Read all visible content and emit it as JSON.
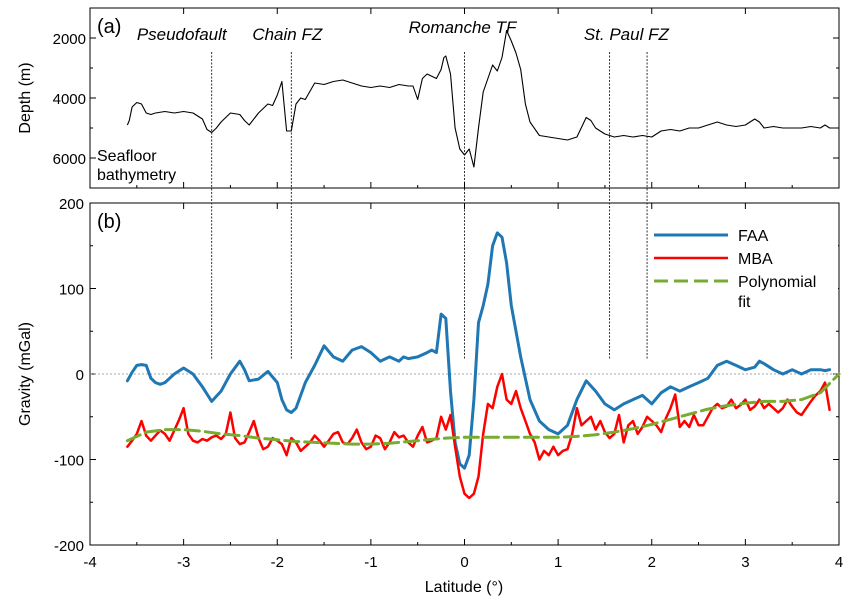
{
  "chart_data": [
    {
      "type": "line",
      "panel_label": "(a)",
      "ylabel": "Depth (m)",
      "y_reversed": true,
      "ylim": [
        7000,
        1000
      ],
      "xlim": [
        -4,
        4
      ],
      "yticks": [
        {
          "value": 2000,
          "label": "2000"
        },
        {
          "value": 4000,
          "label": "4000"
        },
        {
          "value": 6000,
          "label": "6000"
        }
      ],
      "inner_label_lines": [
        "Seafloor",
        "bathymetry"
      ],
      "fracture_zones": [
        {
          "name": "Pseudofault",
          "x": -2.7
        },
        {
          "name": "Chain FZ",
          "x": -1.85
        },
        {
          "name": "Romanche TF",
          "x": 0.0
        },
        {
          "name": "St. Paul FZ",
          "x": 1.95,
          "x2": 1.55
        }
      ],
      "series": [
        {
          "color": "#000000",
          "x": [
            -3.6,
            -3.58,
            -3.55,
            -3.5,
            -3.45,
            -3.4,
            -3.35,
            -3.3,
            -3.2,
            -3.1,
            -3.0,
            -2.9,
            -2.8,
            -2.75,
            -2.7,
            -2.65,
            -2.6,
            -2.5,
            -2.4,
            -2.35,
            -2.3,
            -2.2,
            -2.1,
            -2.05,
            -2.0,
            -1.95,
            -1.9,
            -1.85,
            -1.8,
            -1.75,
            -1.7,
            -1.6,
            -1.5,
            -1.4,
            -1.3,
            -1.2,
            -1.1,
            -1.0,
            -0.9,
            -0.8,
            -0.7,
            -0.6,
            -0.55,
            -0.5,
            -0.45,
            -0.4,
            -0.3,
            -0.25,
            -0.22,
            -0.2,
            -0.15,
            -0.1,
            -0.05,
            0.0,
            0.05,
            0.1,
            0.15,
            0.2,
            0.25,
            0.3,
            0.35,
            0.4,
            0.45,
            0.5,
            0.55,
            0.6,
            0.65,
            0.7,
            0.8,
            0.9,
            1.0,
            1.1,
            1.2,
            1.3,
            1.35,
            1.4,
            1.5,
            1.6,
            1.7,
            1.8,
            1.9,
            2.0,
            2.1,
            2.2,
            2.3,
            2.4,
            2.5,
            2.6,
            2.7,
            2.8,
            2.9,
            3.0,
            3.1,
            3.15,
            3.2,
            3.3,
            3.4,
            3.5,
            3.6,
            3.7,
            3.8,
            3.85,
            3.9,
            4.0
          ],
          "y": [
            4900,
            4750,
            4300,
            4150,
            4200,
            4500,
            4550,
            4500,
            4450,
            4500,
            4450,
            4500,
            4700,
            5050,
            5150,
            5000,
            4800,
            4500,
            4550,
            4750,
            4900,
            4500,
            4200,
            4250,
            3900,
            3450,
            5100,
            5100,
            4200,
            4000,
            4050,
            3500,
            3550,
            3450,
            3400,
            3500,
            3600,
            3650,
            3600,
            3650,
            3550,
            3600,
            3600,
            4050,
            3350,
            3200,
            3350,
            3050,
            2650,
            2600,
            3200,
            5000,
            5700,
            5900,
            5700,
            6300,
            5000,
            3800,
            3350,
            2900,
            3100,
            2650,
            1750,
            2100,
            2500,
            3050,
            4200,
            4800,
            5250,
            5300,
            5350,
            5400,
            5300,
            4650,
            4750,
            5000,
            5200,
            5300,
            5250,
            5300,
            5250,
            5300,
            5100,
            5050,
            5100,
            5000,
            5000,
            4900,
            4800,
            4900,
            4950,
            4900,
            4700,
            4800,
            5000,
            4950,
            5000,
            5000,
            5000,
            4950,
            5000,
            4900,
            5000,
            5000
          ]
        }
      ]
    },
    {
      "type": "line",
      "panel_label": "(b)",
      "xlabel": "Latitude (°)",
      "ylabel": "Gravity (mGal)",
      "xlim": [
        -4,
        4
      ],
      "ylim": [
        -200,
        200
      ],
      "xticks": [
        {
          "value": -4,
          "label": "-4"
        },
        {
          "value": -3,
          "label": "-3"
        },
        {
          "value": -2,
          "label": "-2"
        },
        {
          "value": -1,
          "label": "-1"
        },
        {
          "value": 0,
          "label": "0"
        },
        {
          "value": 1,
          "label": "1"
        },
        {
          "value": 2,
          "label": "2"
        },
        {
          "value": 3,
          "label": "3"
        },
        {
          "value": 4,
          "label": "4"
        }
      ],
      "yticks": [
        {
          "value": -200,
          "label": "-200"
        },
        {
          "value": -100,
          "label": "-100"
        },
        {
          "value": 0,
          "label": "0"
        },
        {
          "value": 100,
          "label": "100"
        },
        {
          "value": 200,
          "label": "200"
        }
      ],
      "zero_line": true,
      "legend_position": "top-right",
      "series": [
        {
          "name": "FAA",
          "color": "#1f77b4",
          "width": 3,
          "dash": "",
          "x": [
            -3.6,
            -3.55,
            -3.5,
            -3.45,
            -3.4,
            -3.35,
            -3.3,
            -3.25,
            -3.2,
            -3.1,
            -3.0,
            -2.9,
            -2.8,
            -2.7,
            -2.6,
            -2.5,
            -2.4,
            -2.35,
            -2.3,
            -2.2,
            -2.1,
            -2.0,
            -1.95,
            -1.9,
            -1.85,
            -1.8,
            -1.7,
            -1.6,
            -1.5,
            -1.4,
            -1.3,
            -1.2,
            -1.1,
            -1.0,
            -0.9,
            -0.8,
            -0.7,
            -0.65,
            -0.6,
            -0.5,
            -0.4,
            -0.35,
            -0.3,
            -0.25,
            -0.2,
            -0.15,
            -0.1,
            -0.05,
            0.0,
            0.05,
            0.1,
            0.15,
            0.2,
            0.25,
            0.3,
            0.35,
            0.4,
            0.45,
            0.5,
            0.6,
            0.7,
            0.8,
            0.9,
            1.0,
            1.1,
            1.2,
            1.3,
            1.4,
            1.5,
            1.6,
            1.7,
            1.8,
            1.9,
            2.0,
            2.1,
            2.2,
            2.3,
            2.4,
            2.5,
            2.6,
            2.7,
            2.8,
            2.9,
            3.0,
            3.1,
            3.15,
            3.2,
            3.3,
            3.4,
            3.5,
            3.6,
            3.7,
            3.8,
            3.85,
            3.9
          ],
          "y": [
            -8,
            2,
            10,
            11,
            10,
            -5,
            -10,
            -12,
            -10,
            0,
            7,
            0,
            -15,
            -32,
            -20,
            0,
            15,
            5,
            -8,
            -6,
            3,
            -10,
            -30,
            -42,
            -45,
            -40,
            -10,
            10,
            33,
            20,
            15,
            28,
            32,
            25,
            15,
            20,
            15,
            20,
            18,
            20,
            25,
            28,
            25,
            70,
            65,
            -20,
            -80,
            -105,
            -110,
            -95,
            -30,
            60,
            80,
            105,
            150,
            165,
            160,
            130,
            80,
            20,
            -30,
            -55,
            -65,
            -70,
            -60,
            -30,
            -8,
            -20,
            -35,
            -42,
            -35,
            -30,
            -25,
            -35,
            -22,
            -15,
            -20,
            -15,
            -10,
            -5,
            10,
            15,
            10,
            5,
            8,
            15,
            12,
            5,
            0,
            5,
            0,
            5,
            5,
            4,
            5
          ]
        },
        {
          "name": "MBA",
          "color": "#ff0000",
          "width": 2.5,
          "dash": "",
          "x": [
            -3.6,
            -3.55,
            -3.5,
            -3.45,
            -3.4,
            -3.35,
            -3.3,
            -3.25,
            -3.2,
            -3.15,
            -3.1,
            -3.05,
            -3.0,
            -2.95,
            -2.9,
            -2.85,
            -2.8,
            -2.75,
            -2.7,
            -2.65,
            -2.6,
            -2.55,
            -2.5,
            -2.45,
            -2.4,
            -2.35,
            -2.3,
            -2.25,
            -2.2,
            -2.15,
            -2.1,
            -2.05,
            -2.0,
            -1.95,
            -1.9,
            -1.85,
            -1.8,
            -1.75,
            -1.7,
            -1.65,
            -1.6,
            -1.55,
            -1.5,
            -1.45,
            -1.4,
            -1.35,
            -1.3,
            -1.25,
            -1.2,
            -1.15,
            -1.1,
            -1.05,
            -1.0,
            -0.95,
            -0.9,
            -0.85,
            -0.8,
            -0.75,
            -0.7,
            -0.65,
            -0.6,
            -0.55,
            -0.5,
            -0.45,
            -0.4,
            -0.35,
            -0.3,
            -0.25,
            -0.2,
            -0.15,
            -0.1,
            -0.05,
            0.0,
            0.05,
            0.1,
            0.15,
            0.2,
            0.25,
            0.3,
            0.35,
            0.4,
            0.45,
            0.5,
            0.55,
            0.6,
            0.65,
            0.7,
            0.75,
            0.8,
            0.85,
            0.9,
            0.95,
            1.0,
            1.05,
            1.1,
            1.15,
            1.2,
            1.25,
            1.3,
            1.35,
            1.4,
            1.45,
            1.5,
            1.55,
            1.6,
            1.65,
            1.7,
            1.75,
            1.8,
            1.85,
            1.9,
            1.95,
            2.0,
            2.05,
            2.1,
            2.15,
            2.2,
            2.25,
            2.3,
            2.35,
            2.4,
            2.45,
            2.5,
            2.55,
            2.6,
            2.65,
            2.7,
            2.75,
            2.8,
            2.85,
            2.9,
            2.95,
            3.0,
            3.05,
            3.1,
            3.15,
            3.2,
            3.25,
            3.3,
            3.35,
            3.4,
            3.45,
            3.5,
            3.55,
            3.6,
            3.65,
            3.7,
            3.75,
            3.8,
            3.85,
            3.9
          ],
          "y": [
            -85,
            -78,
            -70,
            -55,
            -72,
            -78,
            -72,
            -66,
            -70,
            -78,
            -66,
            -54,
            -40,
            -70,
            -78,
            -80,
            -76,
            -78,
            -74,
            -72,
            -76,
            -70,
            -45,
            -75,
            -82,
            -80,
            -68,
            -55,
            -75,
            -88,
            -85,
            -75,
            -78,
            -82,
            -95,
            -75,
            -80,
            -90,
            -85,
            -80,
            -72,
            -78,
            -85,
            -78,
            -70,
            -68,
            -80,
            -82,
            -75,
            -65,
            -80,
            -88,
            -85,
            -72,
            -75,
            -88,
            -80,
            -68,
            -74,
            -72,
            -80,
            -85,
            -72,
            -62,
            -80,
            -78,
            -75,
            -50,
            -65,
            -48,
            -85,
            -120,
            -140,
            -145,
            -140,
            -120,
            -70,
            -35,
            -40,
            -15,
            0,
            -30,
            -35,
            -20,
            -40,
            -55,
            -70,
            -80,
            -100,
            -90,
            -95,
            -85,
            -95,
            -90,
            -88,
            -70,
            -40,
            -60,
            -55,
            -50,
            -65,
            -55,
            -68,
            -75,
            -70,
            -48,
            -80,
            -60,
            -55,
            -70,
            -62,
            -50,
            -55,
            -60,
            -68,
            -52,
            -40,
            -24,
            -62,
            -55,
            -62,
            -48,
            -60,
            -60,
            -50,
            -40,
            -35,
            -40,
            -38,
            -30,
            -40,
            -36,
            -30,
            -42,
            -38,
            -30,
            -40,
            -35,
            -40,
            -45,
            -40,
            -30,
            -38,
            -45,
            -48,
            -40,
            -32,
            -25,
            -20,
            -10,
            -42
          ]
        },
        {
          "name": "Polynomial fit",
          "legend_lines": [
            "Polynomial",
            "fit"
          ],
          "color": "#77ac30",
          "width": 3,
          "dash": "14,6",
          "x": [
            -3.6,
            -3.4,
            -3.2,
            -3.0,
            -2.8,
            -2.6,
            -2.4,
            -2.2,
            -2.0,
            -1.8,
            -1.6,
            -1.4,
            -1.2,
            -1.0,
            -0.8,
            -0.6,
            -0.4,
            -0.2,
            0.0,
            0.2,
            0.4,
            0.6,
            0.8,
            1.0,
            1.2,
            1.4,
            1.6,
            1.8,
            2.0,
            2.2,
            2.4,
            2.6,
            2.8,
            3.0,
            3.2,
            3.4,
            3.6,
            3.8,
            4.0
          ],
          "y": [
            -78,
            -68,
            -65,
            -65,
            -67,
            -70,
            -72,
            -75,
            -77,
            -79,
            -80,
            -81,
            -82,
            -82,
            -81,
            -79,
            -77,
            -75,
            -74,
            -74,
            -74,
            -74,
            -74,
            -74,
            -73,
            -71,
            -68,
            -64,
            -59,
            -53,
            -47,
            -41,
            -37,
            -34,
            -32,
            -32,
            -30,
            -22,
            0
          ]
        }
      ]
    }
  ]
}
